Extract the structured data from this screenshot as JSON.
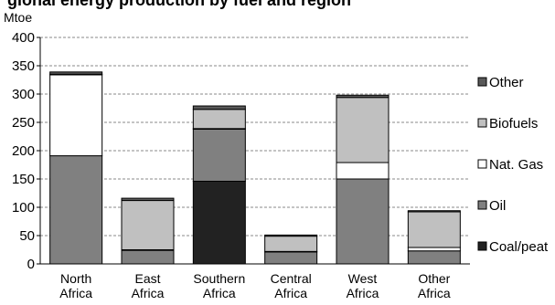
{
  "title": "gional energy production by fuel and region",
  "chart_data": {
    "type": "bar",
    "stacked": true,
    "ylabel": "Mtoe",
    "xlabel": "",
    "ylim": [
      0,
      400
    ],
    "yticks": [
      0,
      50,
      100,
      150,
      200,
      250,
      300,
      350,
      400
    ],
    "grid": true,
    "legend_position": "right",
    "categories": [
      [
        "North",
        "Africa"
      ],
      [
        "East",
        "Africa"
      ],
      [
        "Southern",
        "Africa"
      ],
      [
        "Central",
        "Africa"
      ],
      [
        "West",
        "Africa"
      ],
      [
        "Other",
        "Africa"
      ]
    ],
    "series": [
      {
        "name": "Coal/peat",
        "color": "#222222",
        "values": [
          0,
          0,
          146,
          0,
          0,
          0
        ]
      },
      {
        "name": "Oil",
        "color": "#808080",
        "values": [
          191,
          24,
          92,
          21,
          150,
          23
        ]
      },
      {
        "name": "Nat. Gas",
        "color": "#ffffff",
        "values": [
          143,
          1,
          1,
          1,
          29,
          6
        ]
      },
      {
        "name": "Biofuels",
        "color": "#c0c0c0",
        "values": [
          1,
          87,
          34,
          27,
          115,
          63
        ]
      },
      {
        "name": "Other",
        "color": "#595959",
        "values": [
          4,
          4,
          6,
          2,
          4,
          2
        ]
      }
    ]
  }
}
